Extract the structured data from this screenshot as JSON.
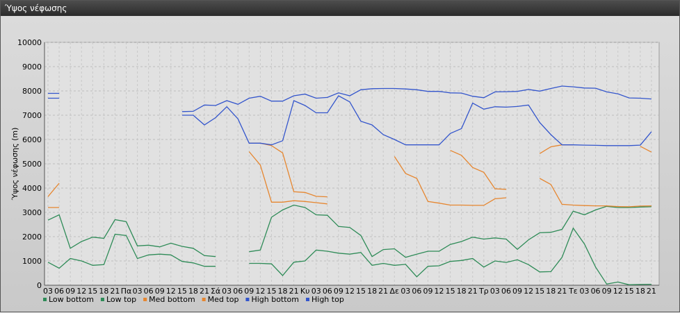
{
  "window": {
    "title": "Ύψος νέφωσης"
  },
  "chart_data": {
    "type": "line",
    "ylabel": "Ύψος νέφωσης (m)",
    "ylim": [
      0,
      10000
    ],
    "yticks": [
      0,
      1000,
      2000,
      3000,
      4000,
      5000,
      6000,
      7000,
      8000,
      9000,
      10000
    ],
    "grid": true,
    "legend_position": "bottom-left",
    "x": [
      "03",
      "06",
      "09",
      "12",
      "15",
      "18",
      "21",
      "Πα",
      "03",
      "06",
      "09",
      "12",
      "15",
      "18",
      "21",
      "Σά",
      "03",
      "06",
      "09",
      "12",
      "15",
      "18",
      "21",
      "Κυ",
      "03",
      "06",
      "09",
      "12",
      "15",
      "18",
      "21",
      "Δε",
      "03",
      "06",
      "09",
      "12",
      "15",
      "18",
      "21",
      "Τρ",
      "03",
      "06",
      "09",
      "12",
      "15",
      "18",
      "21",
      "Τε",
      "03",
      "06",
      "09",
      "12",
      "15",
      "18",
      "21"
    ],
    "series": [
      {
        "name": "Low bottom",
        "color": "#2e8b57",
        "values": [
          950,
          700,
          1100,
          1000,
          820,
          850,
          2100,
          2050,
          1100,
          1250,
          1280,
          1250,
          980,
          920,
          780,
          780,
          null,
          null,
          900,
          900,
          880,
          400,
          950,
          1000,
          1450,
          1400,
          1320,
          1280,
          1350,
          820,
          900,
          820,
          860,
          350,
          780,
          800,
          980,
          1020,
          1100,
          750,
          1000,
          940,
          1050,
          850,
          550,
          560,
          1150,
          2350,
          1700,
          750,
          50,
          130,
          20,
          30,
          40
        ]
      },
      {
        "name": "Low top",
        "color": "#2e8b57",
        "values": [
          2680,
          2900,
          1520,
          1800,
          1980,
          1930,
          2700,
          2620,
          1620,
          1650,
          1580,
          1730,
          1600,
          1520,
          1220,
          1180,
          null,
          null,
          1380,
          1450,
          2800,
          3100,
          3300,
          3200,
          2900,
          2880,
          2420,
          2380,
          2050,
          1180,
          1470,
          1500,
          1150,
          1280,
          1400,
          1400,
          1680,
          1800,
          1980,
          1900,
          1950,
          1900,
          1480,
          1870,
          2160,
          2180,
          2300,
          3050,
          2900,
          3100,
          3250,
          3200,
          3200,
          3220,
          3230
        ]
      },
      {
        "name": "Med bottom",
        "color": "#e6862f",
        "values": [
          3200,
          3200,
          null,
          null,
          null,
          null,
          null,
          null,
          null,
          null,
          null,
          null,
          null,
          null,
          null,
          null,
          null,
          null,
          5500,
          4950,
          3420,
          3420,
          3480,
          3450,
          3400,
          3350,
          null,
          null,
          null,
          null,
          null,
          5300,
          4600,
          4400,
          3450,
          3380,
          3300,
          3300,
          3290,
          3290,
          3560,
          3600,
          null,
          null,
          4400,
          4150,
          3330,
          3300,
          3280,
          3270,
          3270,
          3240,
          3230,
          3260,
          3270
        ]
      },
      {
        "name": "Med top",
        "color": "#e6862f",
        "values": [
          3650,
          4200,
          null,
          null,
          null,
          null,
          null,
          null,
          null,
          null,
          null,
          null,
          null,
          null,
          null,
          null,
          null,
          null,
          5850,
          5850,
          5750,
          5450,
          3850,
          3820,
          3660,
          3640,
          null,
          null,
          null,
          null,
          null,
          null,
          null,
          null,
          null,
          null,
          5550,
          5350,
          4850,
          4650,
          3970,
          3950,
          null,
          null,
          5420,
          5700,
          5780,
          5780,
          null,
          null,
          null,
          null,
          null,
          5720,
          5480
        ]
      },
      {
        "name": "High bottom",
        "color": "#3355cc",
        "values": [
          7700,
          7700,
          null,
          null,
          null,
          null,
          null,
          null,
          null,
          null,
          null,
          null,
          7000,
          7000,
          6600,
          6900,
          7350,
          6850,
          5850,
          5850,
          5780,
          5950,
          7600,
          7400,
          7100,
          7100,
          7800,
          7550,
          6750,
          6600,
          6200,
          6000,
          5780,
          5780,
          5780,
          5780,
          6250,
          6450,
          7500,
          7250,
          7350,
          7330,
          7360,
          7420,
          6700,
          6200,
          5780,
          5780,
          5770,
          5760,
          5750,
          5750,
          5750,
          5770,
          6320
        ]
      },
      {
        "name": "High top",
        "color": "#3355cc",
        "values": [
          7900,
          7900,
          null,
          null,
          null,
          null,
          null,
          null,
          null,
          null,
          null,
          null,
          7150,
          7160,
          7420,
          7400,
          7600,
          7450,
          7700,
          7780,
          7580,
          7580,
          7800,
          7870,
          7700,
          7730,
          7920,
          7800,
          8050,
          8090,
          8100,
          8100,
          8080,
          8050,
          7980,
          7980,
          7920,
          7910,
          7780,
          7720,
          7960,
          7970,
          7980,
          8060,
          7990,
          8100,
          8200,
          8170,
          8120,
          8110,
          7960,
          7880,
          7710,
          7700,
          7670
        ]
      }
    ]
  }
}
